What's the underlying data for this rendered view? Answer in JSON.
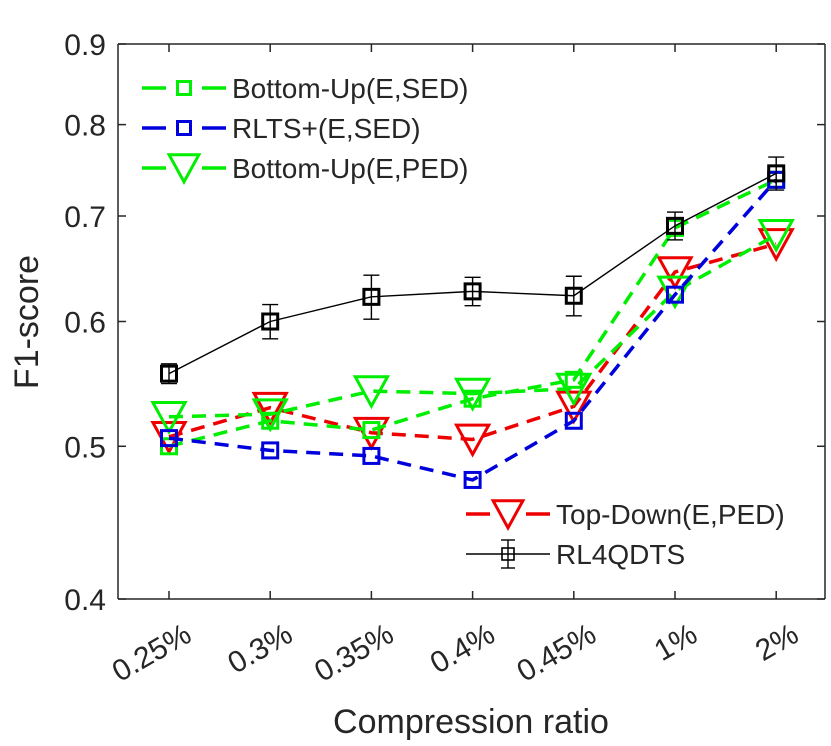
{
  "chart_data": {
    "type": "line",
    "title": "",
    "xlabel": "Compression ratio",
    "ylabel": "F1-score",
    "yscale": "log",
    "ylim": [
      0.4,
      0.9
    ],
    "yticks": [
      0.4,
      0.5,
      0.6,
      0.7,
      0.8,
      0.9
    ],
    "ytick_labels": [
      "0.4",
      "0.5",
      "0.6",
      "0.7",
      "0.8",
      "0.9"
    ],
    "categories": [
      "0.25%",
      "0.3%",
      "0.35%",
      "0.4%",
      "0.45%",
      "1%",
      "2%"
    ],
    "grid": false,
    "series": [
      {
        "name": "Bottom-Up(E,SED)",
        "color": "#00ee00",
        "style": "dashed",
        "marker": "square",
        "values": [
          0.5,
          0.519,
          0.512,
          0.536,
          0.551,
          0.688,
          0.738
        ]
      },
      {
        "name": "RLTS+(E,SED)",
        "color": "#0000dd",
        "style": "dashed",
        "marker": "square",
        "values": [
          0.506,
          0.497,
          0.493,
          0.476,
          0.519,
          0.624,
          0.738
        ]
      },
      {
        "name": "Bottom-Up(E,PED)",
        "color": "#00ee00",
        "style": "dashed",
        "marker": "triangle-down",
        "values": [
          0.522,
          0.524,
          0.542,
          0.54,
          0.544,
          0.627,
          0.681
        ]
      },
      {
        "name": "Top-Down(E,PED)",
        "color": "#ee0000",
        "style": "dashed",
        "marker": "triangle-down",
        "values": [
          0.507,
          0.529,
          0.51,
          0.505,
          0.53,
          0.645,
          0.672
        ]
      },
      {
        "name": "RL4QDTS",
        "color": "#000000",
        "style": "solid",
        "marker": "square",
        "values": [
          0.556,
          0.6,
          0.622,
          0.627,
          0.623,
          0.69,
          0.745
        ],
        "errors": [
          0.008,
          0.015,
          0.02,
          0.013,
          0.018,
          0.014,
          0.018
        ]
      }
    ],
    "legends": [
      {
        "location": "top-left",
        "entries": [
          "Bottom-Up(E,SED)",
          "RLTS+(E,SED)",
          "Bottom-Up(E,PED)"
        ]
      },
      {
        "location": "bottom-right",
        "entries": [
          "Top-Down(E,PED)",
          "RL4QDTS"
        ]
      }
    ]
  }
}
